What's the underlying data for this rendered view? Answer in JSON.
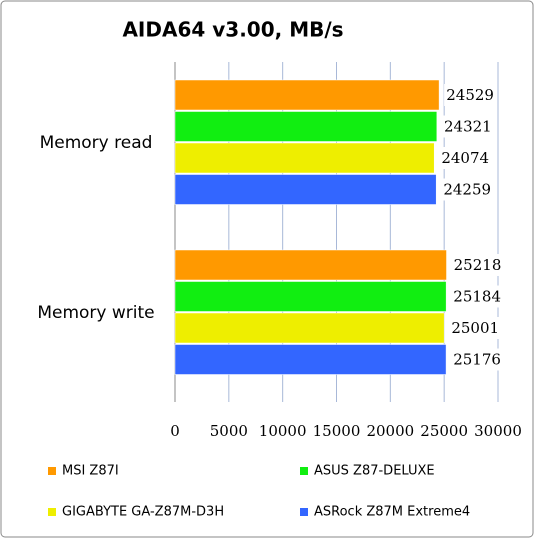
{
  "chart_data": {
    "type": "bar",
    "orientation": "horizontal",
    "title": "AIDA64 v3.00, MB/s",
    "categories": [
      "Memory read",
      "Memory write"
    ],
    "series": [
      {
        "name": "MSI Z87I",
        "color": "#ff9900",
        "values": [
          24529,
          25218
        ]
      },
      {
        "name": "ASUS Z87-DELUXE",
        "color": "#11ee11",
        "values": [
          24321,
          25184
        ]
      },
      {
        "name": "GIGABYTE GA-Z87M-D3H",
        "color": "#eeee00",
        "values": [
          24074,
          25001
        ]
      },
      {
        "name": "ASRock Z87M Extreme4",
        "color": "#3366ff",
        "values": [
          24259,
          25176
        ]
      }
    ],
    "xlim": [
      0,
      30000
    ],
    "xticks": [
      0,
      5000,
      10000,
      15000,
      20000,
      25000,
      30000
    ],
    "grid": true
  }
}
